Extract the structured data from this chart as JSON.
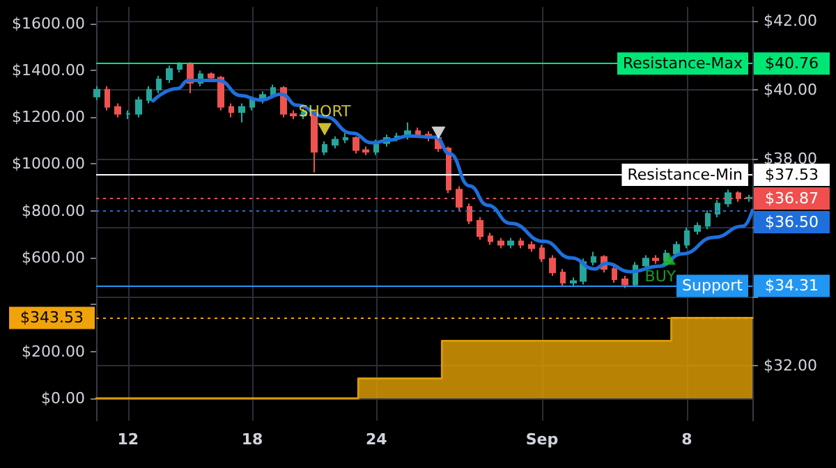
{
  "chart_data": {
    "type": "candlestick",
    "xlim": [
      "--08-10T11:00",
      "--09-11T04:00"
    ],
    "xticks": [
      {
        "value": "--08-12",
        "label": "12"
      },
      {
        "value": "--08-18",
        "label": "18"
      },
      {
        "value": "--08-24",
        "label": "24"
      },
      {
        "value": "--09-01",
        "label": "Sep"
      },
      {
        "value": "--09-08",
        "label": "8"
      }
    ],
    "ylim": [
      -95,
      1670
    ],
    "yticks": [
      {
        "value": 0,
        "label": "$0.00"
      },
      {
        "value": 200,
        "label": "$200.00"
      },
      {
        "value": 400,
        "label": null
      },
      {
        "value": 600,
        "label": "$600.00"
      },
      {
        "value": 800,
        "label": "$800.00"
      },
      {
        "value": 1000,
        "label": "$1000.00"
      },
      {
        "value": 1200,
        "label": "$1200.00"
      },
      {
        "value": 1400,
        "label": "$1400.00"
      },
      {
        "value": 1600,
        "label": "$1600.00"
      }
    ],
    "y2lim": [
      30.4,
      42.4
    ],
    "y2ticks": [
      {
        "value": 32,
        "label": "$32.00"
      },
      {
        "value": 34,
        "label": null
      },
      {
        "value": 36,
        "label": null
      },
      {
        "value": 38,
        "label": "$38.00"
      },
      {
        "value": 40,
        "label": "$40.00"
      },
      {
        "value": 42,
        "label": "$42.00"
      }
    ],
    "grid": true,
    "series": [
      {
        "type": "area",
        "color": "#d89a06",
        "x": [
          "--08-10T11:00",
          "--08-23T03:00",
          "--08-27T04:00",
          "--09-07T06:00",
          "--09-11T04:00"
        ],
        "values": [
          0,
          85,
          245,
          343.53,
          343.53
        ]
      },
      {
        "axis": "y2",
        "x": [
          "--08-10T12:00",
          "--08-11T00:00",
          "--08-11T12:00",
          "--08-12T00:00",
          "--08-12T12:00",
          "--08-13T00:00",
          "--08-13T12:00",
          "--08-14T00:00",
          "--08-14T12:00",
          "--08-15T00:00",
          "--08-15T12:00",
          "--08-16T00:00",
          "--08-16T12:00",
          "--08-17T00:00",
          "--08-17T12:00",
          "--08-18T00:00",
          "--08-18T12:00",
          "--08-19T00:00",
          "--08-19T12:00",
          "--08-20T00:00",
          "--08-20T12:00",
          "--08-21T00:00",
          "--08-21T12:00",
          "--08-22T00:00",
          "--08-22T12:00",
          "--08-23T00:00",
          "--08-23T12:00",
          "--08-24T00:00",
          "--08-24T12:00",
          "--08-25T00:00",
          "--08-25T12:00",
          "--08-26T00:00",
          "--08-26T12:00",
          "--08-27T00:00",
          "--08-27T12:00",
          "--08-28T00:00",
          "--08-28T12:00",
          "--08-29T00:00",
          "--08-29T12:00",
          "--08-30T00:00",
          "--08-30T12:00",
          "--08-31T00:00",
          "--08-31T12:00",
          "--09-01T00:00",
          "--09-01T12:00",
          "--09-02T00:00",
          "--09-02T12:00",
          "--09-03T00:00",
          "--09-03T12:00",
          "--09-04T00:00",
          "--09-04T12:00",
          "--09-05T00:00",
          "--09-05T12:00",
          "--09-06T00:00",
          "--09-06T12:00",
          "--09-07T00:00",
          "--09-07T12:00",
          "--09-08T00:00",
          "--09-08T12:00",
          "--09-09T00:00",
          "--09-09T12:00",
          "--09-10T00:00",
          "--09-10T12:00",
          "--09-11T00:00"
        ],
        "ohlc": [
          [
            39.8,
            40.1,
            39.7,
            40.0
          ],
          [
            40.0,
            40.1,
            39.4,
            39.5
          ],
          [
            39.5,
            39.6,
            39.2,
            39.3
          ],
          [
            39.3,
            39.4,
            39.15,
            39.3
          ],
          [
            39.3,
            39.8,
            39.2,
            39.7
          ],
          [
            39.7,
            40.1,
            39.6,
            40.0
          ],
          [
            40.0,
            40.4,
            39.9,
            40.3
          ],
          [
            40.3,
            40.7,
            40.2,
            40.6
          ],
          [
            40.6,
            40.8,
            40.5,
            40.75
          ],
          [
            40.75,
            40.8,
            39.9,
            40.2
          ],
          [
            40.2,
            40.55,
            40.1,
            40.45
          ],
          [
            40.45,
            40.5,
            40.25,
            40.35
          ],
          [
            40.35,
            40.4,
            39.4,
            39.5
          ],
          [
            39.5,
            39.6,
            39.2,
            39.35
          ],
          [
            39.35,
            39.6,
            39.05,
            39.5
          ],
          [
            39.5,
            39.8,
            39.4,
            39.7
          ],
          [
            39.7,
            39.95,
            39.6,
            39.85
          ],
          [
            39.85,
            40.15,
            39.75,
            40.05
          ],
          [
            40.05,
            40.1,
            39.2,
            39.3
          ],
          [
            39.3,
            39.4,
            39.15,
            39.25
          ],
          [
            39.25,
            39.45,
            39.15,
            39.35
          ],
          [
            39.35,
            39.4,
            37.6,
            38.2
          ],
          [
            38.2,
            38.5,
            38.1,
            38.4
          ],
          [
            38.4,
            38.65,
            38.3,
            38.55
          ],
          [
            38.55,
            38.75,
            38.45,
            38.6
          ],
          [
            38.6,
            38.65,
            38.15,
            38.25
          ],
          [
            38.25,
            38.35,
            38.1,
            38.2
          ],
          [
            38.2,
            38.55,
            38.1,
            38.45
          ],
          [
            38.45,
            38.7,
            38.35,
            38.6
          ],
          [
            38.6,
            38.75,
            38.5,
            38.65
          ],
          [
            38.65,
            39.05,
            38.55,
            38.8
          ],
          [
            38.8,
            38.9,
            38.6,
            38.7
          ],
          [
            38.7,
            38.8,
            38.5,
            38.6
          ],
          [
            38.6,
            38.65,
            38.2,
            38.3
          ],
          [
            38.3,
            38.35,
            37.0,
            37.1
          ],
          [
            37.1,
            37.2,
            36.5,
            36.6
          ],
          [
            36.6,
            36.7,
            36.1,
            36.2
          ],
          [
            36.2,
            36.3,
            35.65,
            35.75
          ],
          [
            35.75,
            35.85,
            35.5,
            35.6
          ],
          [
            35.6,
            35.7,
            35.4,
            35.5
          ],
          [
            35.5,
            35.7,
            35.4,
            35.6
          ],
          [
            35.6,
            35.7,
            35.4,
            35.5
          ],
          [
            35.5,
            35.6,
            35.3,
            35.4
          ],
          [
            35.4,
            35.5,
            35.0,
            35.1
          ],
          [
            35.1,
            35.2,
            34.6,
            34.7
          ],
          [
            34.7,
            34.8,
            34.3,
            34.4
          ],
          [
            34.4,
            34.55,
            34.3,
            34.45
          ],
          [
            34.45,
            35.1,
            34.35,
            35.0
          ],
          [
            35.0,
            35.3,
            34.9,
            35.15
          ],
          [
            35.15,
            35.2,
            34.7,
            34.8
          ],
          [
            34.8,
            34.9,
            34.4,
            34.5
          ],
          [
            34.5,
            34.6,
            34.25,
            34.35
          ],
          [
            34.35,
            35.0,
            34.3,
            34.9
          ],
          [
            34.9,
            35.2,
            34.8,
            35.1
          ],
          [
            35.1,
            35.2,
            34.95,
            35.05
          ],
          [
            35.05,
            35.35,
            34.95,
            35.25
          ],
          [
            35.25,
            35.6,
            35.15,
            35.5
          ],
          [
            35.5,
            36.0,
            35.4,
            35.9
          ],
          [
            35.9,
            36.15,
            35.8,
            36.05
          ],
          [
            36.05,
            36.5,
            35.95,
            36.4
          ],
          [
            36.4,
            36.8,
            36.3,
            36.7
          ],
          [
            36.7,
            37.1,
            36.6,
            37.0
          ],
          [
            37.0,
            37.05,
            36.75,
            36.85
          ],
          [
            36.85,
            36.95,
            36.75,
            36.87
          ]
        ],
        "colors": [
          "#26a69a",
          "#ef5350",
          "#ef5350",
          "#26a69a",
          "#26a69a",
          "#26a69a",
          "#26a69a",
          "#26a69a",
          "#26a69a",
          "#ef5350",
          "#26a69a",
          "#ef5350",
          "#ef5350",
          "#ef5350",
          "#26a69a",
          "#26a69a",
          "#26a69a",
          "#26a69a",
          "#ef5350",
          "#ef5350",
          "#26a69a",
          "#ef5350",
          "#26a69a",
          "#26a69a",
          "#26a69a",
          "#ef5350",
          "#ef5350",
          "#26a69a",
          "#26a69a",
          "#26a69a",
          "#26a69a",
          "#ef5350",
          "#ef5350",
          "#ef5350",
          "#ef5350",
          "#ef5350",
          "#ef5350",
          "#ef5350",
          "#ef5350",
          "#ef5350",
          "#26a69a",
          "#ef5350",
          "#ef5350",
          "#ef5350",
          "#ef5350",
          "#ef5350",
          "#26a69a",
          "#26a69a",
          "#26a69a",
          "#ef5350",
          "#ef5350",
          "#ef5350",
          "#26a69a",
          "#26a69a",
          "#ef5350",
          "#26a69a",
          "#26a69a",
          "#26a69a",
          "#26a69a",
          "#26a69a",
          "#26a69a",
          "#26a69a",
          "#ef5350",
          "#26a69a"
        ]
      },
      {
        "type": "line",
        "axis": "y2",
        "color": "#1e6fdc",
        "x": [
          "--08-13T05:00",
          "--08-14T09:00",
          "--08-14T22:00",
          "--08-15T17:00",
          "--08-16T09:00",
          "--08-17T11:00",
          "--08-18T09:00",
          "--08-19T10:00",
          "--08-20T04:00",
          "--08-21T12:00",
          "--08-22T20:00",
          "--08-23T19:00",
          "--08-24T16:00",
          "--08-25T13:00",
          "--08-26T21:00",
          "--08-27T13:00",
          "--08-28T12:00",
          "--08-29T09:00",
          "--08-30T12:00",
          "--09-01T02:00",
          "--09-02T10:00",
          "--09-03T13:00",
          "--09-04T02:00",
          "--09-05T07:00",
          "--09-06T16:00",
          "--09-07T19:00",
          "--09-09T08:00",
          "--09-10T17:00",
          "--09-11T04:00"
        ],
        "values": [
          39.68,
          40.03,
          40.27,
          40.27,
          40.27,
          39.83,
          39.7,
          39.87,
          39.55,
          39.22,
          38.74,
          38.46,
          38.54,
          38.66,
          38.62,
          38.14,
          37.21,
          36.65,
          36.12,
          35.6,
          35.12,
          34.8,
          34.96,
          34.72,
          34.88,
          35.24,
          35.72,
          36.04,
          36.5
        ]
      },
      {
        "type": "scatter",
        "axis": "y2",
        "marker": "triangle",
        "x": [
          "--08-21T12:00",
          "--08-27T00:00",
          "--09-07T03:00"
        ],
        "values": [
          38.85,
          38.75,
          35.1
        ],
        "value_labels": [
          "SHORT",
          null,
          "BUY"
        ],
        "colors": [
          "#ffeb3b",
          "#ffffff",
          "#22c022"
        ]
      }
    ],
    "ref_lines": [
      {
        "axis": "y2",
        "value": 40.76,
        "label": "Resistance-Max $40.76",
        "color": "#00e676"
      },
      {
        "axis": "y2",
        "value": 37.53,
        "label": "Resistance-Min $37.53",
        "color": "#ffffff"
      },
      {
        "axis": "y2",
        "value": 36.87,
        "label": "$36.87",
        "color": "#ef4f4f",
        "line_style": "dotted"
      },
      {
        "axis": "y2",
        "value": 36.5,
        "label": "$36.50",
        "color": "#1e6fdc",
        "line_style": "dotted"
      },
      {
        "axis": "y2",
        "value": 34.31,
        "label": "Support $34.31",
        "color": "#2196f3"
      },
      {
        "axis": "y",
        "value": 343.53,
        "label": "$343.53",
        "color": "#f0a30a",
        "line_style": "dotted"
      }
    ]
  }
}
